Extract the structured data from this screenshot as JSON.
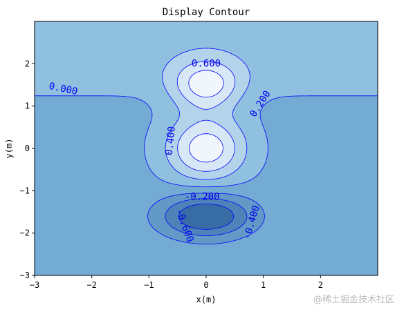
{
  "chart_data": {
    "type": "contour",
    "title": "Display Contour",
    "xlabel": "x(m)",
    "ylabel": "y(m)",
    "xlim": [
      -3,
      3
    ],
    "ylim": [
      -3,
      3
    ],
    "xticks": [
      -3,
      -2,
      -1,
      0,
      1,
      2
    ],
    "yticks": [
      -3,
      -2,
      -1,
      0,
      1,
      2
    ],
    "grid": false,
    "levels": [
      -0.6,
      -0.4,
      -0.2,
      0.0,
      0.2,
      0.4,
      0.6
    ],
    "line_color": "#0000ff",
    "colormap": "Blues",
    "contour_labels": [
      {
        "text": "0.000",
        "x": -2.5,
        "y": 1.4,
        "angle": 12
      },
      {
        "text": "0.600",
        "x": 0.0,
        "y": 2.0,
        "angle": 0
      },
      {
        "text": "0.200",
        "x": 0.95,
        "y": 1.05,
        "angle": -57
      },
      {
        "text": "0.400",
        "x": -0.62,
        "y": 0.18,
        "angle": -84
      },
      {
        "text": "-0.200",
        "x": -0.07,
        "y": -1.15,
        "angle": 0
      },
      {
        "text": "-0.600",
        "x": -0.38,
        "y": -1.82,
        "angle": 70
      },
      {
        "text": "-0.400",
        "x": 0.8,
        "y": -1.75,
        "angle": -74
      }
    ]
  },
  "watermark": "@稀土掘金技术社区"
}
